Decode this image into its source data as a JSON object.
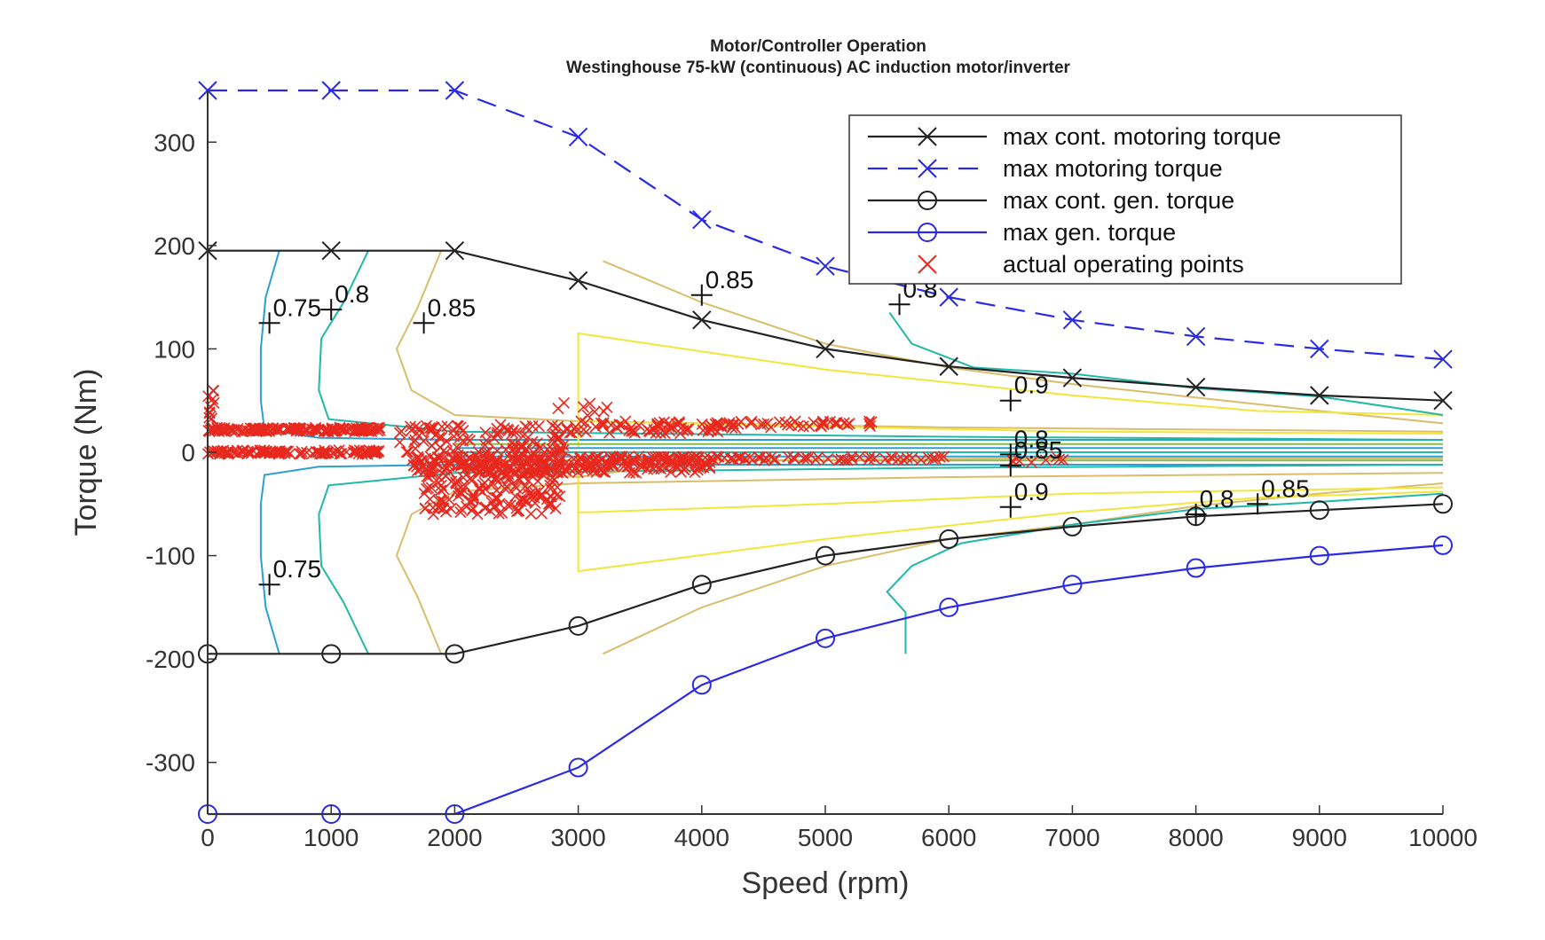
{
  "chart_data": {
    "type": "line",
    "title": "Motor/Controller Operation",
    "subtitle": "Westinghouse 75-kW (continuous) AC induction motor/inverter",
    "xlabel": "Speed (rpm)",
    "ylabel": "Torque (Nm)",
    "xlim": [
      0,
      10000
    ],
    "ylim": [
      -350,
      350
    ],
    "x_ticks": [
      "0",
      "1000",
      "2000",
      "3000",
      "4000",
      "5000",
      "6000",
      "7000",
      "8000",
      "9000",
      "10000"
    ],
    "y_ticks": [
      "300",
      "200",
      "100",
      "0",
      "-100",
      "-200",
      "-300"
    ],
    "legend_position": "top-right",
    "series": [
      {
        "name": "max cont. motoring torque",
        "color": "#222222",
        "line": "solid",
        "marker": "x",
        "x": [
          0,
          1000,
          2000,
          3000,
          4000,
          5000,
          6000,
          7000,
          8000,
          9000,
          10000
        ],
        "y": [
          195,
          195,
          195,
          166,
          128,
          100,
          83,
          72,
          63,
          55,
          50
        ]
      },
      {
        "name": "max motoring torque",
        "color": "#2a2ae6",
        "line": "dashed",
        "marker": "x",
        "x": [
          0,
          1000,
          2000,
          3000,
          4000,
          5000,
          6000,
          7000,
          8000,
          9000,
          10000
        ],
        "y": [
          350,
          350,
          350,
          305,
          225,
          180,
          150,
          128,
          112,
          100,
          90
        ]
      },
      {
        "name": "max cont. gen. torque",
        "color": "#222222",
        "line": "solid",
        "marker": "o",
        "x": [
          0,
          1000,
          2000,
          3000,
          4000,
          5000,
          6000,
          7000,
          8000,
          9000,
          10000
        ],
        "y": [
          -195,
          -195,
          -195,
          -168,
          -128,
          -100,
          -84,
          -72,
          -62,
          -56,
          -50
        ]
      },
      {
        "name": "max gen. torque",
        "color": "#2a2ae6",
        "line": "solid",
        "marker": "o",
        "x": [
          0,
          1000,
          2000,
          3000,
          4000,
          5000,
          6000,
          7000,
          8000,
          9000,
          10000
        ],
        "y": [
          -350,
          -350,
          -350,
          -305,
          -225,
          -180,
          -150,
          -128,
          -112,
          -100,
          -90
        ]
      },
      {
        "name": "actual operating points",
        "color": "#e8281e",
        "line": "none",
        "marker": "x"
      }
    ],
    "contour_labels": [
      {
        "text": "0.75",
        "x": 500,
        "y": 125
      },
      {
        "text": "0.8",
        "x": 1000,
        "y": 138
      },
      {
        "text": "0.85",
        "x": 1750,
        "y": 125
      },
      {
        "text": "0.85",
        "x": 4000,
        "y": 152
      },
      {
        "text": "0.8",
        "x": 5600,
        "y": 143
      },
      {
        "text": "0.9",
        "x": 6500,
        "y": 50
      },
      {
        "text": "0.85",
        "x": 6500,
        "y": -13
      },
      {
        "text": "0.8",
        "x": 6500,
        "y": -2
      },
      {
        "text": "0.9",
        "x": 6500,
        "y": -53
      },
      {
        "text": "0.75",
        "x": 500,
        "y": -128
      },
      {
        "text": "0.8",
        "x": 8000,
        "y": -60
      },
      {
        "text": "0.85",
        "x": 8500,
        "y": -50
      }
    ]
  }
}
